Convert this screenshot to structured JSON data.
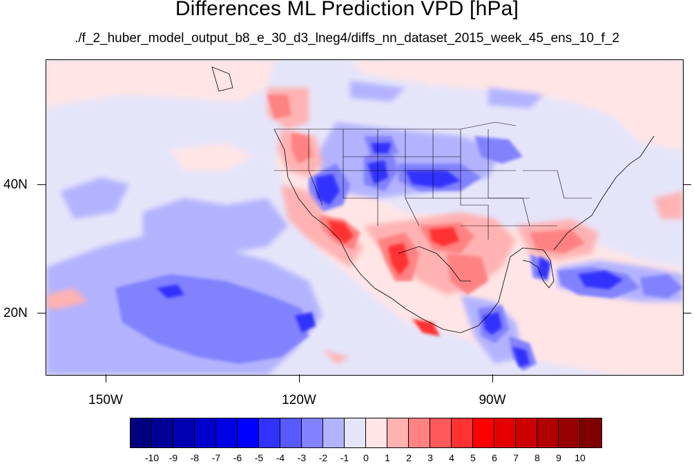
{
  "title": "Differences ML Prediction VPD [hPa]",
  "subtitle": "./f_2_huber_model_output_b8_e_30_d3_lneg4/diffs_nn_dataset_2015_week_45_ens_10_f_2",
  "map": {
    "lon_ticks": [
      "150W",
      "120W",
      "90W"
    ],
    "lat_ticks": [
      "40N",
      "20N"
    ]
  },
  "colorbar": {
    "labels": [
      "-10",
      "-9",
      "-8",
      "-7",
      "-6",
      "-5",
      "-4",
      "-3",
      "-2",
      "-1",
      "0",
      "1",
      "2",
      "3",
      "4",
      "5",
      "6",
      "7",
      "8",
      "9",
      "10"
    ],
    "colors": [
      "#00007f",
      "#000097",
      "#0000b2",
      "#0000cc",
      "#0000e5",
      "#0000ff",
      "#3232ff",
      "#5959ff",
      "#8282ff",
      "#b2b2ff",
      "#e5e5fa",
      "#ffe5e5",
      "#ffb2b2",
      "#ff8282",
      "#ff5959",
      "#ff3232",
      "#ff0000",
      "#e50000",
      "#cc0000",
      "#b20000",
      "#970000",
      "#7f0000"
    ]
  }
}
